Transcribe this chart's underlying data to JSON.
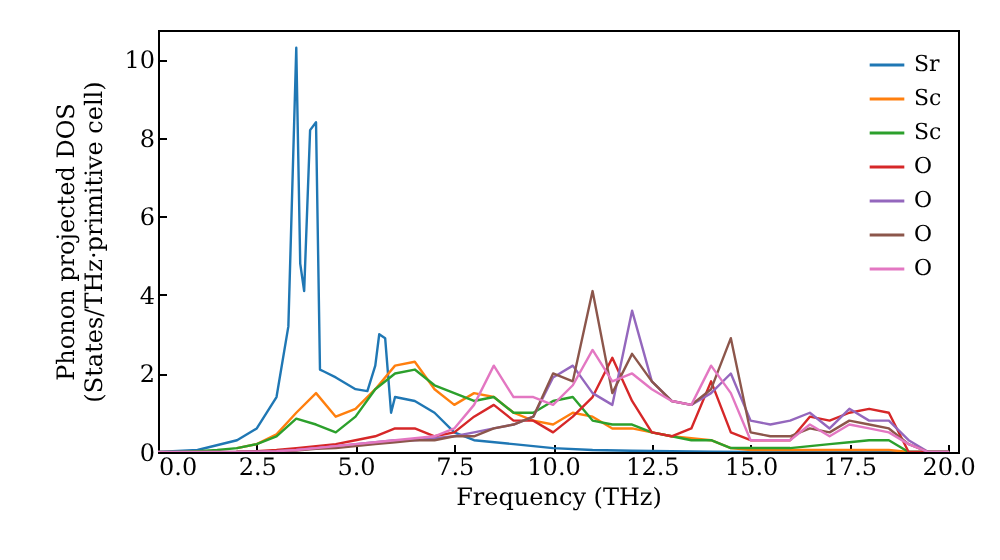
{
  "chart_data": {
    "type": "line",
    "xlabel": "Frequency (THz)",
    "ylabel": "Phonon projected DOS\n(States/THz·primitive cell)",
    "x": [
      0,
      0.5,
      1,
      1.5,
      2,
      2.5,
      3,
      3.5,
      4,
      4.5,
      5,
      5.5,
      6,
      6.5,
      7,
      7.5,
      8,
      8.5,
      9,
      9.5,
      10,
      10.5,
      11,
      11.5,
      12,
      12.5,
      13,
      13.5,
      14,
      14.5,
      15,
      15.5,
      16,
      16.5,
      17,
      17.5,
      18,
      18.5,
      19,
      19.5,
      20
    ],
    "series": [
      {
        "name": "Sr",
        "color": "#1f77b4",
        "x": [
          0,
          1,
          2,
          2.5,
          3,
          3.3,
          3.5,
          3.6,
          3.7,
          3.85,
          4.0,
          4.1,
          4.2,
          4.5,
          5,
          5.3,
          5.5,
          5.6,
          5.75,
          5.9,
          6,
          6.5,
          7,
          7.5,
          8,
          9,
          10,
          11,
          12,
          13,
          14,
          15,
          20
        ],
        "values": [
          0,
          0.05,
          0.3,
          0.6,
          1.4,
          3.2,
          10.3,
          4.8,
          4.1,
          8.2,
          8.4,
          2.1,
          2.05,
          1.9,
          1.6,
          1.55,
          2.2,
          3.0,
          2.9,
          1.0,
          1.4,
          1.3,
          1.0,
          0.5,
          0.3,
          0.2,
          0.1,
          0.05,
          0.03,
          0.02,
          0.01,
          0,
          0
        ]
      },
      {
        "name": "Sc",
        "color": "#ff7f0e",
        "values": [
          null,
          null,
          null,
          null,
          0.1,
          0.2,
          0.45,
          1.0,
          1.5,
          0.9,
          1.1,
          1.6,
          2.2,
          2.3,
          1.6,
          1.2,
          1.5,
          1.4,
          1.0,
          0.8,
          0.7,
          1.0,
          0.9,
          0.6,
          0.6,
          0.5,
          0.4,
          0.35,
          0.3,
          0.1,
          0.05,
          0.05,
          0.05,
          0.05,
          0.05,
          0.05,
          0.05,
          0.05,
          0,
          0,
          0
        ]
      },
      {
        "name": "Sc",
        "color": "#2ca02c",
        "values": [
          0,
          0,
          0.02,
          0.05,
          0.1,
          0.2,
          0.4,
          0.85,
          0.7,
          0.5,
          0.9,
          1.6,
          2.0,
          2.1,
          1.7,
          1.5,
          1.3,
          1.4,
          1.0,
          1.0,
          1.3,
          1.4,
          0.8,
          0.7,
          0.7,
          0.5,
          0.4,
          0.3,
          0.3,
          0.1,
          0.1,
          0.1,
          0.1,
          0.15,
          0.2,
          0.25,
          0.3,
          0.3,
          0,
          0,
          0
        ]
      },
      {
        "name": "O",
        "color": "#d62728",
        "values": [
          null,
          null,
          null,
          null,
          0.01,
          0.02,
          0.05,
          0.1,
          0.15,
          0.2,
          0.3,
          0.4,
          0.6,
          0.6,
          0.4,
          0.5,
          0.9,
          1.2,
          0.8,
          0.8,
          0.5,
          0.9,
          1.4,
          2.4,
          1.3,
          0.5,
          0.4,
          0.6,
          1.8,
          0.5,
          0.3,
          0.3,
          0.3,
          0.9,
          0.8,
          1.0,
          1.1,
          1.0,
          0,
          0,
          0
        ]
      },
      {
        "name": "O",
        "color": "#9467bd",
        "values": [
          null,
          null,
          null,
          null,
          0,
          0.01,
          0.02,
          0.05,
          0.1,
          0.15,
          0.2,
          0.25,
          0.3,
          0.3,
          0.35,
          0.4,
          0.5,
          0.6,
          0.7,
          0.9,
          1.9,
          2.2,
          1.5,
          1.2,
          3.6,
          1.8,
          1.3,
          1.2,
          1.5,
          2.0,
          0.8,
          0.7,
          0.8,
          1.0,
          0.6,
          1.1,
          0.8,
          0.8,
          0.3,
          0,
          0
        ]
      },
      {
        "name": "O",
        "color": "#8c564b",
        "values": [
          0,
          0,
          0,
          0,
          0,
          0.01,
          0.02,
          0.04,
          0.08,
          0.1,
          0.15,
          0.2,
          0.25,
          0.3,
          0.3,
          0.4,
          0.4,
          0.6,
          0.7,
          0.9,
          2.0,
          1.8,
          4.1,
          1.5,
          2.5,
          1.8,
          1.3,
          1.2,
          1.6,
          2.9,
          0.5,
          0.4,
          0.4,
          0.6,
          0.5,
          0.8,
          0.7,
          0.6,
          0.2,
          0,
          0
        ]
      },
      {
        "name": "O",
        "color": "#e377c2",
        "values": [
          0,
          0,
          0,
          0,
          0,
          0.01,
          0.02,
          0.05,
          0.1,
          0.15,
          0.2,
          0.25,
          0.3,
          0.35,
          0.4,
          0.6,
          1.2,
          2.2,
          1.4,
          1.4,
          1.2,
          1.7,
          2.6,
          1.8,
          2.0,
          1.6,
          1.3,
          1.2,
          2.2,
          1.5,
          0.3,
          0.3,
          0.3,
          0.7,
          0.4,
          0.7,
          0.6,
          0.5,
          0.2,
          0,
          0
        ]
      }
    ],
    "xlim": [
      0,
      20.25
    ],
    "xticks": [
      {
        "value": 0,
        "label": "0.0"
      },
      {
        "value": 2.5,
        "label": "2.5"
      },
      {
        "value": 5,
        "label": "5.0"
      },
      {
        "value": 7.5,
        "label": "7.5"
      },
      {
        "value": 10,
        "label": "10.0"
      },
      {
        "value": 12.5,
        "label": "12.5"
      },
      {
        "value": 15,
        "label": "15.0"
      },
      {
        "value": 17.5,
        "label": "17.5"
      },
      {
        "value": 20,
        "label": "20.0"
      }
    ],
    "ylim": [
      0,
      10.75
    ],
    "yticks": [
      0,
      2,
      4,
      6,
      8,
      10
    ],
    "legend": "top right",
    "grid": false
  }
}
